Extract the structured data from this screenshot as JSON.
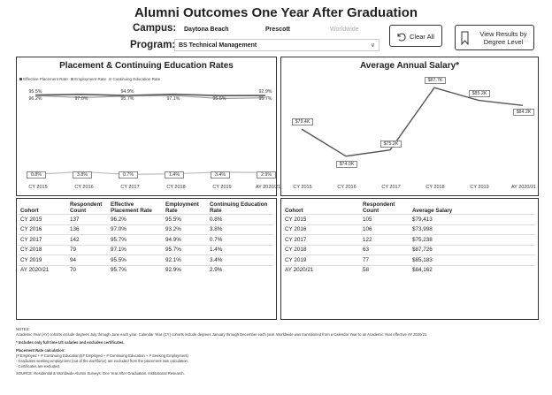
{
  "title": "Alumni Outcomes One Year After Graduation",
  "campus": {
    "label": "Campus:",
    "options": [
      "Daytona Beach",
      "Prescott",
      "Worldwide"
    ]
  },
  "program": {
    "label": "Program:",
    "selected": "BS Technical Management"
  },
  "buttons": {
    "clear_all": "Clear All",
    "view_results": "View Results by Degree Level"
  },
  "colors": {
    "effective": "#555555",
    "employment": "#999999",
    "continuing": "#bbbbbb",
    "salary": "#555555"
  },
  "placement": {
    "title": "Placement & Continuing Education Rates",
    "legend": [
      "Effective Placement Rate",
      "Employment Rate",
      "Continuing Education Rate"
    ],
    "chart_data": {
      "type": "line",
      "categories": [
        "CY 2015",
        "CY 2016",
        "CY 2017",
        "CY 2018",
        "CY 2019",
        "AY 2020/21"
      ],
      "series": [
        {
          "name": "Effective Placement Rate",
          "values": [
            96.2,
            97.0,
            95.7,
            97.1,
            95.5,
            95.7
          ]
        },
        {
          "name": "Employment Rate",
          "values": [
            95.5,
            93.2,
            94.9,
            95.7,
            92.1,
            92.9
          ]
        },
        {
          "name": "Continuing Education Rate",
          "values": [
            0.8,
            3.8,
            0.7,
            1.4,
            3.4,
            2.9
          ]
        }
      ],
      "labels_top": [
        "95.5%",
        "94.9%",
        "92.9%"
      ],
      "labels_mid": [
        "96.2%",
        "97.0%",
        "95.7%",
        "97.1%",
        "95.5%",
        "95.7%"
      ],
      "labels_low": [
        "0.8%",
        "3.8%",
        "0.7%",
        "1.4%",
        "3.4%",
        "2.9%"
      ]
    },
    "table": {
      "headers": [
        "Cohort",
        "Respondent Count",
        "Effective Placement Rate",
        "Employment Rate",
        "Continuing Education Rate"
      ],
      "rows": [
        [
          "CY 2015",
          "137",
          "96.2%",
          "95.5%",
          "0.8%"
        ],
        [
          "CY 2016",
          "136",
          "97.0%",
          "93.2%",
          "3.8%"
        ],
        [
          "CY 2017",
          "142",
          "95.7%",
          "94.9%",
          "0.7%"
        ],
        [
          "CY 2018",
          "79",
          "97.1%",
          "95.7%",
          "1.4%"
        ],
        [
          "CY 2019",
          "94",
          "95.5%",
          "92.1%",
          "3.4%"
        ],
        [
          "AY 2020/21",
          "70",
          "95.7%",
          "92.9%",
          "2.9%"
        ]
      ]
    }
  },
  "salary": {
    "title": "Average Annual Salary*",
    "chart_data": {
      "type": "line",
      "categories": [
        "CY 2015",
        "CY 2016",
        "CY 2017",
        "CY 2018",
        "CY 2019",
        "AY 2020/21"
      ],
      "series": [
        {
          "values": [
            79413,
            73998,
            75238,
            87726,
            85183,
            84162
          ]
        }
      ],
      "labels": [
        "$79.4K",
        "$74.0K",
        "$75.2K",
        "$87.7K",
        "$85.2K",
        "$84.2K"
      ]
    },
    "table": {
      "headers": [
        "Cohort",
        "Respondent Count",
        "Average Salary"
      ],
      "rows": [
        [
          "CY 2015",
          "105",
          "$79,413"
        ],
        [
          "CY 2016",
          "106",
          "$73,998"
        ],
        [
          "CY 2017",
          "122",
          "$75,238"
        ],
        [
          "CY 2018",
          "63",
          "$87,726"
        ],
        [
          "CY 2019",
          "77",
          "$85,183"
        ],
        [
          "AY 2020/21",
          "58",
          "$84,162"
        ]
      ]
    }
  },
  "notes": {
    "heading": "NOTES:",
    "line1": "Academic Year (AY) cohorts include degrees July through June each year. Calendar Year (CY) cohorts include degrees January through December each year. Worldwide was transitioned from a Calendar Year to an Academic Year effective AY 2020/21.",
    "line2": "* Includes only full time US salaries and excludes certificates.",
    "calc_heading": "Placement Rate calculation:",
    "calc1": "(# Employed + # Continuing Education)/(# Employed + # Continuing Education + # Seeking Employment)",
    "calc2": "- Graduates seeking employment (out of the workforce) are excluded from the placement rate calculation.",
    "calc3": "- Certificates are excluded.",
    "source": "SOURCE: Residential & Worldwide Alumni Surveys: One Year After Graduation. Institutional Research."
  }
}
